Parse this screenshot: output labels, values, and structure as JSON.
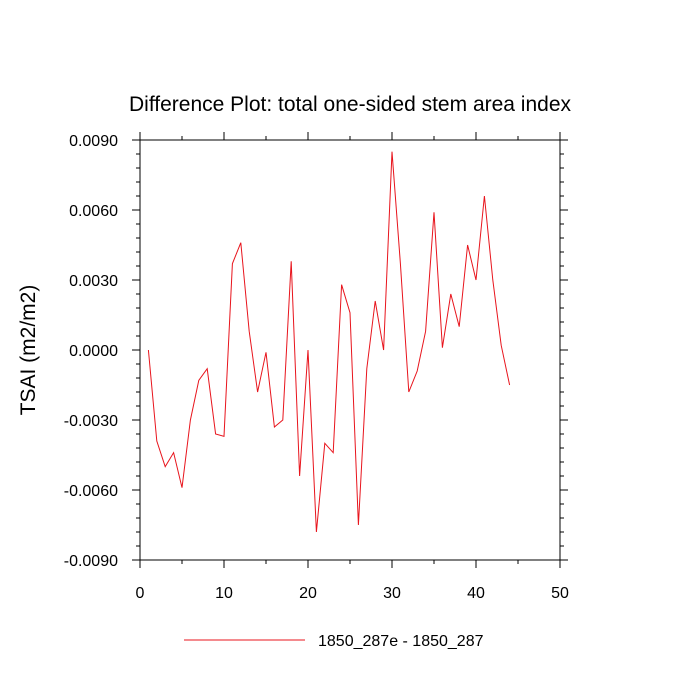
{
  "chart_data": {
    "type": "line",
    "title": "Difference Plot: total one-sided stem area index",
    "xlabel": "",
    "ylabel": "TSAI  (m2/m2)",
    "xlim": [
      0,
      50
    ],
    "ylim": [
      -0.009,
      0.009
    ],
    "xticks": [
      0,
      10,
      20,
      30,
      40,
      50
    ],
    "xtick_labels": [
      "0",
      "10",
      "20",
      "30",
      "40",
      "50"
    ],
    "yticks": [
      -0.009,
      -0.006,
      -0.003,
      0.0,
      0.003,
      0.006,
      0.009
    ],
    "ytick_labels": [
      "-0.0090",
      "-0.0060",
      "-0.0030",
      "0.0000",
      "0.0030",
      "0.0060",
      "0.0090"
    ],
    "grid": false,
    "legend_position": "bottom",
    "series": [
      {
        "name": "1850_287e - 1850_287",
        "color": "#e8141c",
        "x": [
          1,
          2,
          3,
          4,
          5,
          6,
          7,
          8,
          9,
          10,
          11,
          12,
          13,
          14,
          15,
          16,
          17,
          18,
          19,
          20,
          21,
          22,
          23,
          24,
          25,
          26,
          27,
          28,
          29,
          30,
          31,
          32,
          33,
          34,
          35,
          36,
          37,
          38,
          39,
          40,
          41,
          42,
          43,
          44
        ],
        "values": [
          0.0,
          -0.0039,
          -0.005,
          -0.0044,
          -0.0059,
          -0.003,
          -0.0013,
          -0.0008,
          -0.0036,
          -0.0037,
          0.0037,
          0.0046,
          0.0008,
          -0.0018,
          -0.0001,
          -0.0033,
          -0.003,
          0.0038,
          -0.0054,
          0.0,
          -0.0078,
          -0.004,
          -0.0044,
          0.0028,
          0.0016,
          -0.0075,
          -0.0008,
          0.0021,
          0.0,
          0.0085,
          0.0037,
          -0.0018,
          -0.0009,
          0.0008,
          0.0059,
          0.0001,
          0.0024,
          0.001,
          0.0045,
          0.003,
          0.0066,
          0.003,
          0.0002,
          -0.0015
        ]
      }
    ]
  }
}
